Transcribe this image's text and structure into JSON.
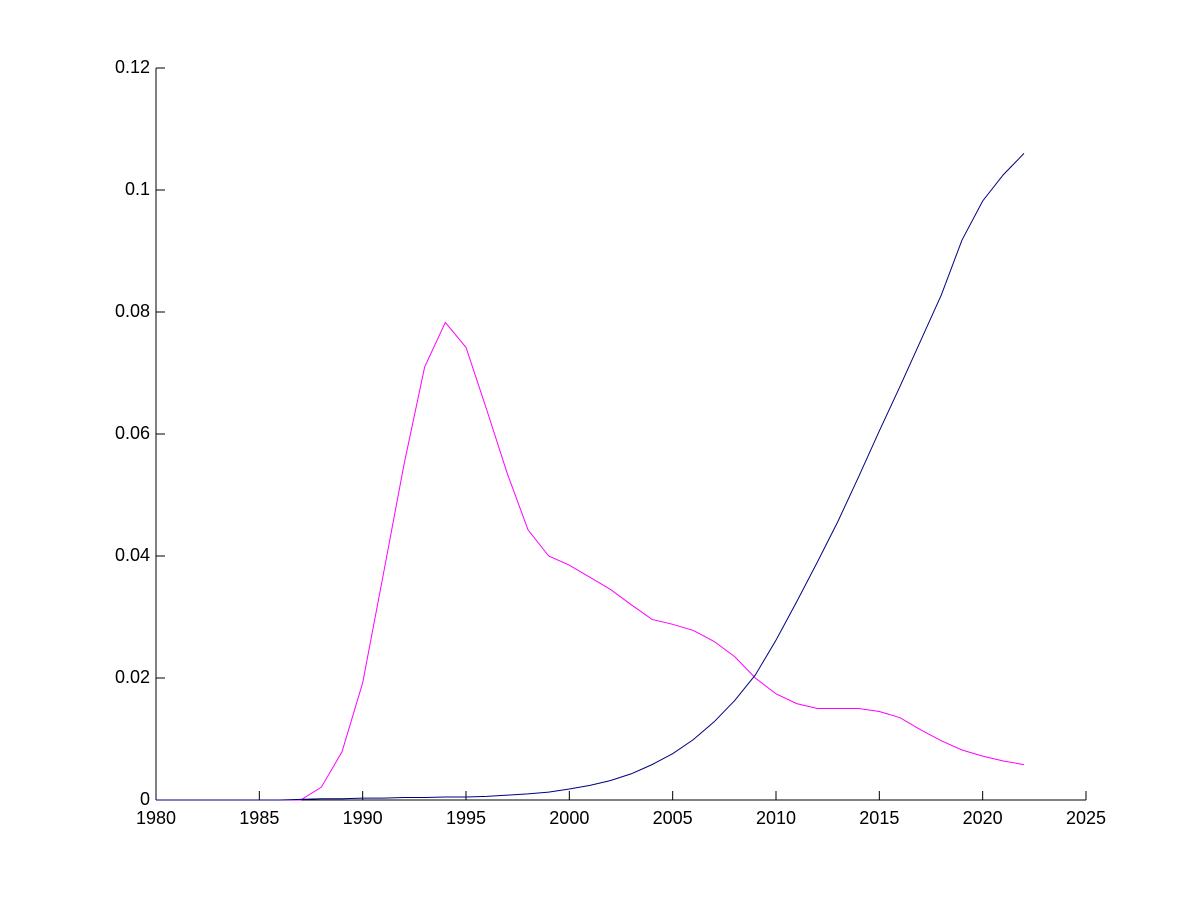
{
  "chart_data": {
    "type": "line",
    "x": [
      1980,
      1981,
      1982,
      1983,
      1984,
      1985,
      1986,
      1987,
      1988,
      1989,
      1990,
      1991,
      1992,
      1993,
      1994,
      1995,
      1996,
      1997,
      1998,
      1999,
      2000,
      2001,
      2002,
      2003,
      2004,
      2005,
      2006,
      2007,
      2008,
      2009,
      2010,
      2011,
      2012,
      2013,
      2014,
      2015,
      2016,
      2017,
      2018,
      2019,
      2020,
      2021,
      2022
    ],
    "series": [
      {
        "color": "#ff00ff",
        "values": [
          0,
          0,
          0,
          0,
          0,
          0,
          0,
          0,
          0.0021,
          0.0079,
          0.0192,
          0.037,
          0.055,
          0.071,
          0.0783,
          0.0742,
          0.064,
          0.0535,
          0.0443,
          0.04,
          0.0385,
          0.0365,
          0.0345,
          0.032,
          0.0296,
          0.0288,
          0.0278,
          0.026,
          0.0235,
          0.02,
          0.0174,
          0.0158,
          0.015,
          0.015,
          0.015,
          0.0145,
          0.0135,
          0.0115,
          0.0097,
          0.0082,
          0.0072,
          0.0064,
          0.0058
        ]
      },
      {
        "color": "#000080",
        "values": [
          0,
          0,
          0,
          0,
          0,
          0,
          0,
          0.0001,
          0.0002,
          0.0002,
          0.0003,
          0.0003,
          0.0004,
          0.0004,
          0.0005,
          0.0005,
          0.0006,
          0.0008,
          0.001,
          0.0013,
          0.0018,
          0.0024,
          0.0032,
          0.0043,
          0.0058,
          0.0076,
          0.0099,
          0.0128,
          0.0163,
          0.0205,
          0.0262,
          0.0325,
          0.039,
          0.0457,
          0.053,
          0.0605,
          0.0678,
          0.0753,
          0.0828,
          0.0918,
          0.0982,
          0.1025,
          0.106
        ]
      }
    ],
    "xlim": [
      1980,
      2025
    ],
    "xticks": [
      1980,
      1985,
      1990,
      1995,
      2000,
      2005,
      2010,
      2015,
      2020,
      2025
    ],
    "ylim": [
      0,
      0.12
    ],
    "yticks": [
      0,
      0.02,
      0.04,
      0.06,
      0.08,
      0.1,
      0.12
    ]
  }
}
